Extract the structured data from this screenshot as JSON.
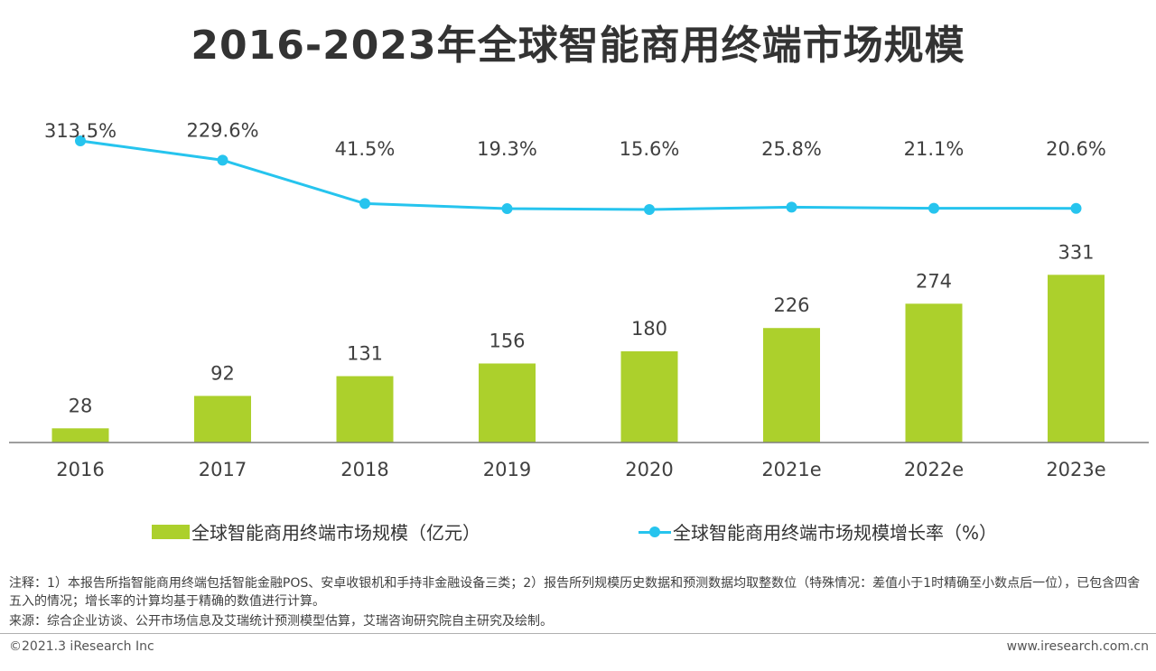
{
  "title": "2016-2023年全球智能商用终端市场规模",
  "colors": {
    "bar": "#acd02c",
    "line": "#26c4ee",
    "axis": "#7f7f7f",
    "text": "#404040"
  },
  "chart_data": {
    "type": "bar+line",
    "categories": [
      "2016",
      "2017",
      "2018",
      "2019",
      "2020",
      "2021e",
      "2022e",
      "2023e"
    ],
    "series": [
      {
        "name": "全球智能商用终端市场规模（亿元）",
        "type": "bar",
        "values": [
          28,
          92,
          131,
          156,
          180,
          226,
          274,
          331
        ],
        "labels": [
          "28",
          "92",
          "131",
          "156",
          "180",
          "226",
          "274",
          "331"
        ]
      },
      {
        "name": "全球智能商用终端市场规模增长率（%）",
        "type": "line",
        "values": [
          313.5,
          229.6,
          41.5,
          19.3,
          15.6,
          25.8,
          21.1,
          20.6
        ],
        "labels": [
          "313.5%",
          "229.6%",
          "41.5%",
          "19.3%",
          "15.6%",
          "25.8%",
          "21.1%",
          "20.6%"
        ]
      }
    ],
    "legend_position": "bottom",
    "grid": false
  },
  "legend": {
    "bar_label": "全球智能商用终端市场规模（亿元）",
    "line_label": "全球智能商用终端市场规模增长率（%）"
  },
  "notes": {
    "note1": "注释：1）本报告所指智能商用终端包括智能金融POS、安卓收银机和手持非金融设备三类；2）报告所列规模历史数据和预测数据均取整数位（特殊情况：差值小于1时精确至小数点后一位），已包含四舍五入的情况；增长率的计算均基于精确的数值进行计算。",
    "source": "来源：综合企业访谈、公开市场信息及艾瑞统计预测模型估算，艾瑞咨询研究院自主研究及绘制。"
  },
  "footer": {
    "copyright": "©2021.3 iResearch Inc",
    "website": "www.iresearch.com.cn"
  }
}
